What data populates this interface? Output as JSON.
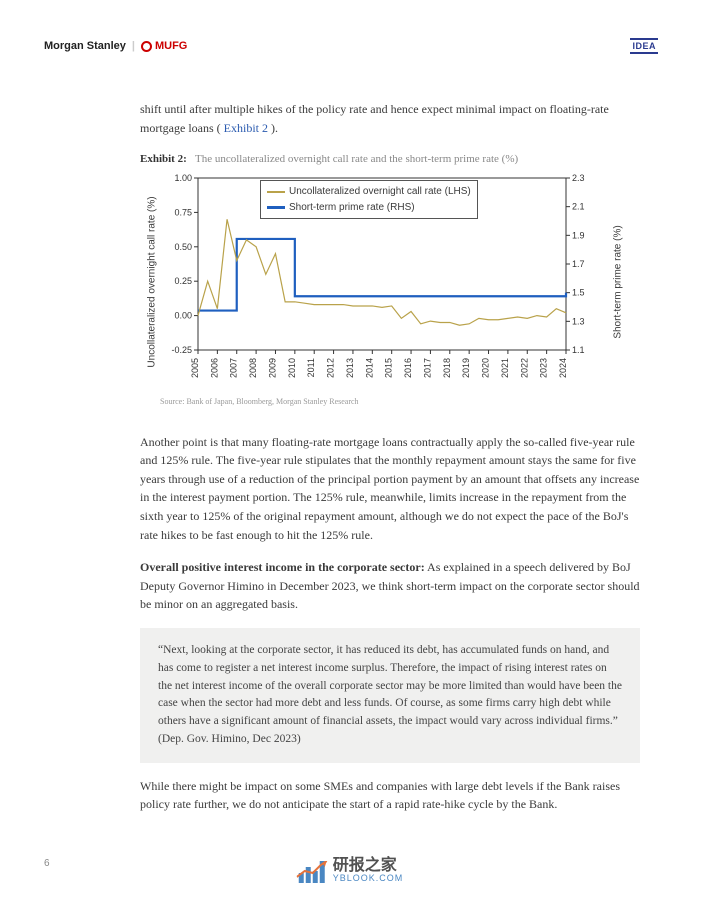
{
  "header": {
    "brand1": "Morgan Stanley",
    "brand2": "MUFG",
    "badge": "IDEA"
  },
  "para1_a": "shift until after multiple hikes of the policy rate and hence expect minimal impact on floating-rate mortgage loans ( ",
  "para1_link": "Exhibit 2",
  "para1_b": " ).",
  "exhibit": {
    "label": "Exhibit 2:",
    "title": "The uncollateralized overnight call rate and the short-term prime rate (%)",
    "source": "Source: Bank of Japan, Bloomberg, Morgan Stanley Research"
  },
  "chart": {
    "legend": {
      "s1": "Uncollateralized overnight call rate (LHS)",
      "s2": "Short-term prime rate (RHS)"
    },
    "colors": {
      "s1": "#b9a24a",
      "s2": "#1f5fbf",
      "axis": "#333333",
      "bg": "#ffffff"
    },
    "ylabel_left": "Uncollateralized overnight call rate (%)",
    "ylabel_right": "Short-term prime rate (%)",
    "y_left": {
      "min": -0.25,
      "max": 1.0,
      "ticks": [
        -0.25,
        0.0,
        0.25,
        0.5,
        0.75,
        1.0
      ]
    },
    "y_right": {
      "min": 1.1,
      "max": 2.3,
      "ticks": [
        1.1,
        1.3,
        1.5,
        1.7,
        1.9,
        2.1,
        2.3
      ]
    },
    "x_labels": [
      "2005",
      "2006",
      "2007",
      "2008",
      "2009",
      "2010",
      "2011",
      "2012",
      "2013",
      "2014",
      "2015",
      "2016",
      "2017",
      "2018",
      "2019",
      "2020",
      "2021",
      "2022",
      "2023",
      "2024"
    ],
    "series_lhs": [
      0.0,
      0.05,
      0.4,
      0.5,
      0.45,
      0.1,
      0.08,
      0.08,
      0.07,
      0.07,
      0.07,
      0.03,
      -0.04,
      -0.05,
      -0.06,
      -0.03,
      -0.02,
      -0.02,
      -0.01,
      0.02
    ],
    "series_lhs_noise": [
      0.0,
      0.25,
      0.7,
      0.55,
      0.3,
      0.1,
      0.09,
      0.08,
      0.08,
      0.07,
      0.06,
      -0.02,
      -0.06,
      -0.05,
      -0.07,
      -0.02,
      -0.03,
      -0.01,
      0.0,
      0.05
    ],
    "series_rhs": [
      1.375,
      1.375,
      1.875,
      1.875,
      1.875,
      1.475,
      1.475,
      1.475,
      1.475,
      1.475,
      1.475,
      1.475,
      1.475,
      1.475,
      1.475,
      1.475,
      1.475,
      1.475,
      1.475,
      1.5
    ],
    "line_width_lhs": 1.2,
    "line_width_rhs": 2.2
  },
  "para2": "Another point is that many floating-rate mortgage loans contractually apply the so-called five-year rule and 125% rule. The five-year rule stipulates that the monthly repayment amount stays the same for five years through use of a reduction of the principal portion payment by an amount that offsets any increase in the interest payment portion. The 125% rule, meanwhile, limits increase in the repayment from the sixth year to 125% of the original repayment amount, although we do not expect the pace of the BoJ's rate hikes to be fast enough to hit the 125% rule.",
  "para3_bold": "Overall positive interest income in the corporate sector:",
  "para3_rest": " As explained in a speech delivered by BoJ Deputy Governor Himino in December 2023, we think short-term impact on the corporate sector should be minor on an aggregated basis.",
  "quote": "“Next, looking at the corporate sector, it has reduced its debt, has accumulated funds on hand, and has come to register a net interest income surplus. Therefore, the impact of rising interest rates on the net interest income of the overall corporate sector may be more limited than would have been the case when the sector had more debt and less funds. Of course, as some firms carry high debt while others have a significant amount of financial assets, the impact would vary across individual firms.” (Dep. Gov. Himino, Dec 2023)",
  "para4": "While there might be impact on some SMEs and companies with large debt levels if the Bank raises policy rate further, we do not anticipate the start of a rapid rate-hike cycle by the Bank.",
  "page_number": "6",
  "watermark": {
    "ch": "研报之家",
    "url": "YBLOOK.COM"
  }
}
